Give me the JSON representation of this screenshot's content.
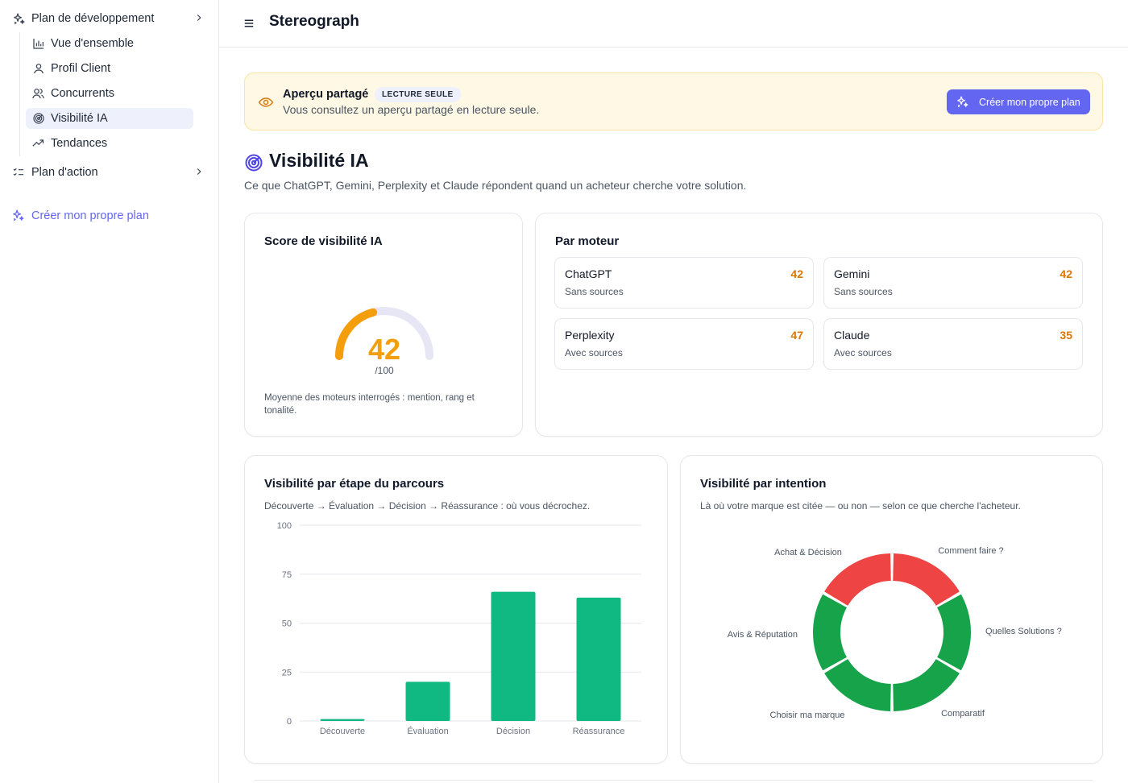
{
  "sidebar": {
    "plan_dev": "Plan de développement",
    "items": [
      {
        "label": "Vue d'ensemble",
        "icon": "bar-chart-icon"
      },
      {
        "label": "Profil Client",
        "icon": "user-icon"
      },
      {
        "label": "Concurrents",
        "icon": "users-icon"
      },
      {
        "label": "Visibilité IA",
        "icon": "radar-icon",
        "active": true
      },
      {
        "label": "Tendances",
        "icon": "trending-up-icon"
      }
    ],
    "plan_action": "Plan d'action",
    "create_link": "Créer mon propre plan"
  },
  "header": {
    "title": "Stereograph"
  },
  "banner": {
    "title": "Aperçu partagé",
    "badge": "LECTURE SEULE",
    "text": "Vous consultez un aperçu partagé en lecture seule.",
    "button": "Créer mon propre plan"
  },
  "page": {
    "title": "Visibilité IA",
    "subtitle": "Ce que ChatGPT, Gemini, Perplexity et Claude répondent quand un acheteur cherche votre solution."
  },
  "score_card": {
    "title": "Score de visibilité IA",
    "score": "42",
    "max": "/100",
    "score_value": 42,
    "note": "Moyenne des moteurs interrogés : mention, rang et tonalité."
  },
  "engines_card": {
    "title": "Par moteur",
    "engines": [
      {
        "name": "ChatGPT",
        "sub": "Sans sources",
        "score": "42"
      },
      {
        "name": "Gemini",
        "sub": "Sans sources",
        "score": "42"
      },
      {
        "name": "Perplexity",
        "sub": "Avec sources",
        "score": "47"
      },
      {
        "name": "Claude",
        "sub": "Avec sources",
        "score": "35"
      }
    ]
  },
  "journey_card": {
    "title": "Visibilité par étape du parcours",
    "subtitle": "Découverte → Évaluation → Décision → Réassurance : où vous décrochez."
  },
  "intent_card": {
    "title": "Visibilité par intention",
    "subtitle": "Là où votre marque est citée — ou non — selon ce que cherche l'acheteur."
  },
  "colors": {
    "accent": "#6366f1",
    "bar": "#10b981",
    "green": "#16a34a",
    "red": "#ef4444",
    "score_orange": "#f59e0b"
  },
  "chart_data": [
    {
      "type": "bar",
      "title": "Visibilité par étape du parcours",
      "categories": [
        "Découverte",
        "Évaluation",
        "Décision",
        "Réassurance"
      ],
      "values": [
        1,
        20,
        66,
        63
      ],
      "ylim": [
        0,
        100
      ],
      "yticks": [
        0,
        25,
        50,
        75,
        100
      ],
      "grid": true
    },
    {
      "type": "pie",
      "title": "Visibilité par intention",
      "labels": [
        "Comment faire ?",
        "Quelles Solutions ?",
        "Comparatif",
        "Choisir ma marque",
        "Avis & Réputation",
        "Achat & Décision"
      ],
      "values": [
        1,
        1,
        1,
        1,
        1,
        1
      ],
      "colors": [
        "#ef4444",
        "#16a34a",
        "#16a34a",
        "#16a34a",
        "#16a34a",
        "#ef4444"
      ],
      "donut": true
    }
  ]
}
